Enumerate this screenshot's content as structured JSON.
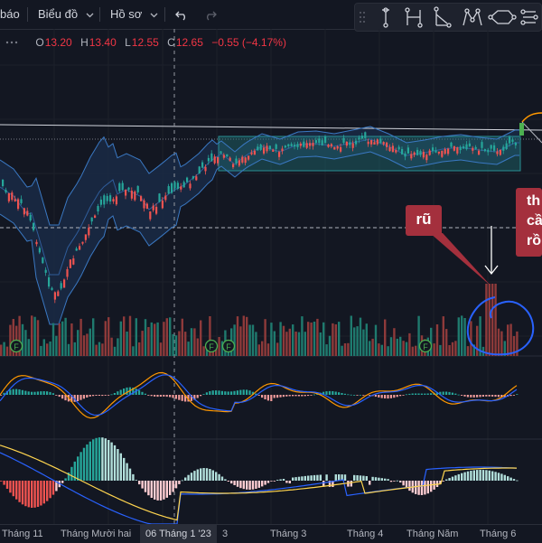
{
  "toolbar": {
    "item0": "báo",
    "item1": "Biểu đồ",
    "item2": "Hồ sơ"
  },
  "drawing_tools": [
    "trend-line-tool-icon",
    "horizontal-segment-tool-icon",
    "angle-tool-icon",
    "xabcd-pattern-tool-icon",
    "ellipse-tool-icon",
    "path-tool-icon"
  ],
  "ohlc": {
    "o_label": "O",
    "o_value": "13.20",
    "h_label": "H",
    "h_value": "13.40",
    "l_label": "L",
    "l_value": "12.55",
    "c_label": "C",
    "c_value": "12.65",
    "change": "−0.55 (−4.17%)"
  },
  "annotations": {
    "callout_1": "rũ",
    "callout_2_lines": [
      "th",
      "cầ",
      "rồ"
    ]
  },
  "event_markers": [
    "F",
    "F",
    "F",
    "F"
  ],
  "xaxis": {
    "labels": [
      "Tháng 11",
      "Tháng Mười hai",
      "06 Tháng 1 '23",
      "3",
      "Tháng 3",
      "Tháng 4",
      "Tháng Năm",
      "Tháng 6"
    ]
  },
  "colors": {
    "background": "#131722",
    "up": "#26a69a",
    "down": "#ef5350",
    "bollinger": "#2962ff",
    "annotation": "#a4303d",
    "macd": "#2962ff",
    "signal": "#ff9800"
  }
}
